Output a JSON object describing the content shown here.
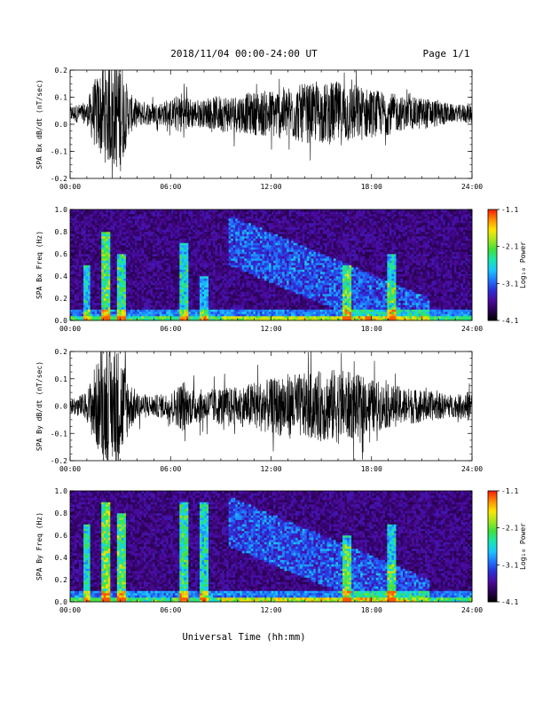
{
  "header": {
    "title": "2018/11/04  00:00-24:00 UT",
    "page": "Page 1/1"
  },
  "xaxis_label": "Universal Time (hh:mm)",
  "colors": {
    "trace": "#000000",
    "colormap": [
      "#000000",
      "#2a0052",
      "#4b0a9e",
      "#2a2fd8",
      "#1f78ff",
      "#19c8ff",
      "#19e6b0",
      "#3ce23c",
      "#a8e61e",
      "#ffe600",
      "#ff8a00",
      "#ff1a00"
    ]
  },
  "chart_data": [
    {
      "type": "line",
      "ylabel": "SPA Bx dB/dt (nT/sec)",
      "xlim": [
        0,
        24
      ],
      "ylim": [
        -0.2,
        0.2
      ],
      "xticks": [
        "00:00",
        "06:00",
        "12:00",
        "18:00",
        "24:00"
      ],
      "yticks": [
        "-0.2",
        "-0.1",
        "0.0",
        "0.1",
        "0.2"
      ],
      "baseline": 0.04,
      "envelope_hours": [
        0,
        1,
        1.4,
        2,
        2.5,
        3,
        3.5,
        4,
        5,
        6,
        6.8,
        7,
        8,
        9,
        10,
        11,
        12,
        13,
        14,
        15,
        16,
        17,
        18,
        19,
        20,
        21,
        22,
        23,
        24
      ],
      "envelope_amp": [
        0.03,
        0.04,
        0.12,
        0.18,
        0.2,
        0.22,
        0.08,
        0.05,
        0.04,
        0.05,
        0.09,
        0.06,
        0.05,
        0.07,
        0.07,
        0.08,
        0.09,
        0.1,
        0.11,
        0.11,
        0.12,
        0.11,
        0.09,
        0.08,
        0.06,
        0.06,
        0.05,
        0.03,
        0.04
      ]
    },
    {
      "type": "heatmap",
      "ylabel": "SPA Bx Freq (Hz)",
      "xlim": [
        0,
        24
      ],
      "ylim": [
        0,
        1.0
      ],
      "xticks": [
        "00:00",
        "06:00",
        "12:00",
        "18:00",
        "24:00"
      ],
      "yticks": [
        "0.0",
        "0.2",
        "0.4",
        "0.6",
        "0.8",
        "1.0"
      ],
      "colorbar": {
        "label": "Log₁₀ Power",
        "range": [
          -4.1,
          -1.1
        ],
        "ticks": [
          "-1.1",
          "-2.1",
          "-3.1",
          "-4.1"
        ]
      },
      "bursts": [
        {
          "t": 1.0,
          "fmax": 0.5,
          "level": 0.35
        },
        {
          "t": 2.1,
          "fmax": 0.8,
          "level": 0.5
        },
        {
          "t": 3.1,
          "fmax": 0.6,
          "level": 0.45
        },
        {
          "t": 6.8,
          "fmax": 0.7,
          "level": 0.4
        },
        {
          "t": 8.0,
          "fmax": 0.4,
          "level": 0.3
        },
        {
          "t": 16.5,
          "fmax": 0.5,
          "level": 0.35
        },
        {
          "t": 19.2,
          "fmax": 0.6,
          "level": 0.35
        }
      ],
      "chorus": {
        "t_start": 9.5,
        "t_end": 21.5,
        "f_start": 0.95,
        "f_end": 0.2
      }
    },
    {
      "type": "line",
      "ylabel": "SPA By dB/dt (nT/sec)",
      "xlim": [
        0,
        24
      ],
      "ylim": [
        -0.2,
        0.2
      ],
      "xticks": [
        "00:00",
        "06:00",
        "12:00",
        "18:00",
        "24:00"
      ],
      "yticks": [
        "-0.2",
        "-0.1",
        "0.0",
        "0.1",
        "0.2"
      ],
      "baseline": 0.0,
      "envelope_hours": [
        0,
        1,
        1.4,
        2,
        2.5,
        3,
        3.5,
        4,
        5,
        6,
        6.8,
        7,
        8,
        9,
        10,
        11,
        12,
        13,
        14,
        15,
        16,
        17,
        18,
        19,
        20,
        21,
        22,
        23,
        24
      ],
      "envelope_amp": [
        0.03,
        0.05,
        0.14,
        0.2,
        0.22,
        0.22,
        0.1,
        0.05,
        0.04,
        0.05,
        0.1,
        0.07,
        0.06,
        0.07,
        0.07,
        0.09,
        0.1,
        0.12,
        0.12,
        0.13,
        0.14,
        0.12,
        0.1,
        0.08,
        0.07,
        0.06,
        0.05,
        0.04,
        0.06
      ]
    },
    {
      "type": "heatmap",
      "ylabel": "SPA By Freq (Hz)",
      "xlim": [
        0,
        24
      ],
      "ylim": [
        0,
        1.0
      ],
      "xticks": [
        "00:00",
        "06:00",
        "12:00",
        "18:00",
        "24:00"
      ],
      "yticks": [
        "0.0",
        "0.2",
        "0.4",
        "0.6",
        "0.8",
        "1.0"
      ],
      "colorbar": {
        "label": "Log₁₀ Power",
        "range": [
          -4.1,
          -1.1
        ],
        "ticks": [
          "-1.1",
          "-2.1",
          "-3.1",
          "-4.1"
        ]
      },
      "bursts": [
        {
          "t": 1.0,
          "fmax": 0.7,
          "level": 0.4
        },
        {
          "t": 2.1,
          "fmax": 0.9,
          "level": 0.55
        },
        {
          "t": 3.1,
          "fmax": 0.8,
          "level": 0.5
        },
        {
          "t": 6.8,
          "fmax": 0.9,
          "level": 0.45
        },
        {
          "t": 8.0,
          "fmax": 0.9,
          "level": 0.4
        },
        {
          "t": 16.5,
          "fmax": 0.6,
          "level": 0.35
        },
        {
          "t": 19.2,
          "fmax": 0.7,
          "level": 0.35
        }
      ],
      "chorus": {
        "t_start": 9.5,
        "t_end": 21.5,
        "f_start": 0.95,
        "f_end": 0.2
      }
    }
  ]
}
